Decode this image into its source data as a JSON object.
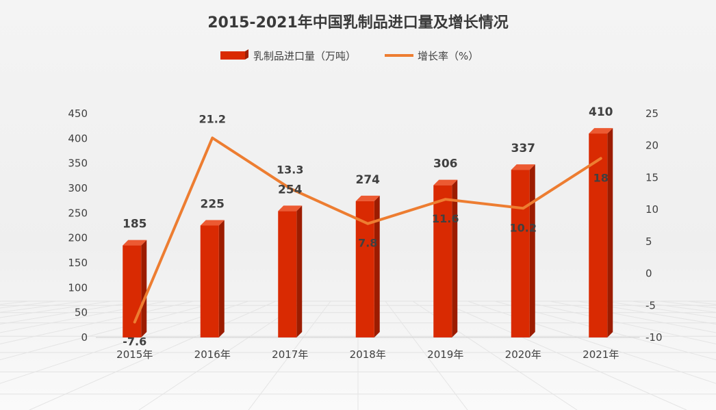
{
  "chart_data": {
    "type": "bar",
    "title": "2015-2021年中国乳制品进口量及增长情况",
    "categories": [
      "2015年",
      "2016年",
      "2017年",
      "2018年",
      "2019年",
      "2020年",
      "2021年"
    ],
    "series": [
      {
        "name": "乳制品进口量（万吨）",
        "type": "bar",
        "axis": "left",
        "values": [
          185,
          225,
          254,
          274,
          306,
          337,
          410
        ],
        "color": "#d92a02"
      },
      {
        "name": "增长率（%）",
        "type": "line",
        "axis": "right",
        "values": [
          -7.6,
          21.2,
          13.3,
          7.8,
          11.6,
          10.2,
          18
        ],
        "color": "#ed7d31"
      }
    ],
    "y_left": {
      "min": 0,
      "max": 450,
      "ticks": [
        0,
        50,
        100,
        150,
        200,
        250,
        300,
        350,
        400,
        450
      ]
    },
    "y_right": {
      "min": -10,
      "max": 25,
      "ticks": [
        -10,
        -5,
        0,
        5,
        10,
        15,
        20,
        25
      ]
    },
    "legend_position": "top-center",
    "grid": false
  }
}
